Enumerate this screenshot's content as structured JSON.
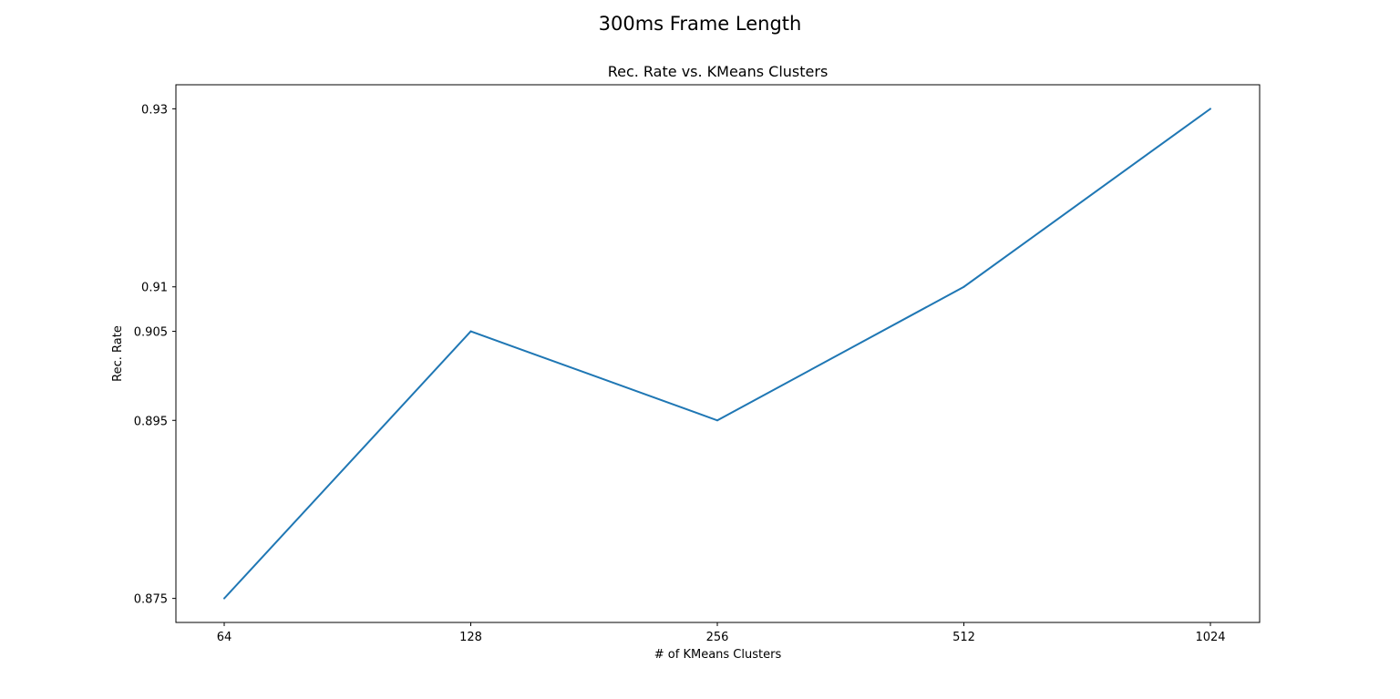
{
  "chart_data": {
    "type": "line",
    "suptitle": "300ms Frame Length",
    "title": "Rec. Rate vs. KMeans Clusters",
    "xlabel": "# of KMeans Clusters",
    "ylabel": "Rec. Rate",
    "categories": [
      "64",
      "128",
      "256",
      "512",
      "1024"
    ],
    "series": [
      {
        "values": [
          0.875,
          0.905,
          0.895,
          0.91,
          0.93
        ],
        "color": "#1f77b4"
      }
    ],
    "yticks": [
      0.875,
      0.895,
      0.905,
      0.91,
      0.93
    ],
    "ytick_labels": [
      "0.875",
      "0.895",
      "0.905",
      "0.91",
      "0.93"
    ],
    "ylim": [
      0.8723,
      0.9327
    ],
    "grid": false,
    "legend": "none"
  }
}
